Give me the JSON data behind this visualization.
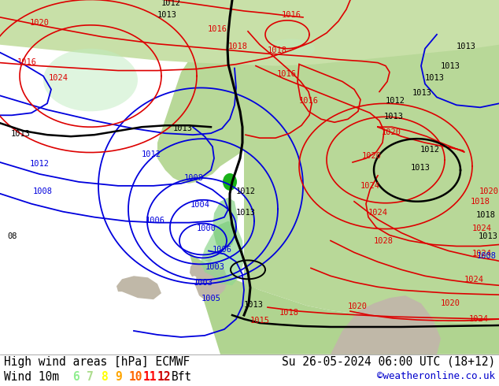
{
  "title_left": "High wind areas [hPa] ECMWF",
  "title_right": "Su 26-05-2024 06:00 UTC (18+12)",
  "subtitle_label": "Wind 10m",
  "bft_values": [
    "6",
    "7",
    "8",
    "9",
    "10",
    "11",
    "12"
  ],
  "bft_colors": [
    "#90ee90",
    "#addd8e",
    "#ffff00",
    "#ffa500",
    "#ff6600",
    "#ff0000",
    "#cc0000"
  ],
  "bft_suffix": "Bft",
  "copyright": "©weatheronline.co.uk",
  "bg_color": "#ffffff",
  "text_color": "#000000",
  "title_fontsize": 10.5,
  "label_fontsize": 10.5,
  "bft_fontsize": 10.5,
  "copyright_color": "#0000cc",
  "ocean_color": "#e8e8f0",
  "land_green": "#c8e6b0",
  "land_green2": "#a8d890",
  "land_grey": "#b8b8a8",
  "isobar_red": "#dd0000",
  "isobar_blue": "#0000dd",
  "isobar_black": "#000000",
  "wind_green_light": "#b0e8b0",
  "wind_green_bright": "#00bb00",
  "label_color_blue": "#0000dd",
  "label_color_red": "#dd0000",
  "label_color_black": "#000000"
}
